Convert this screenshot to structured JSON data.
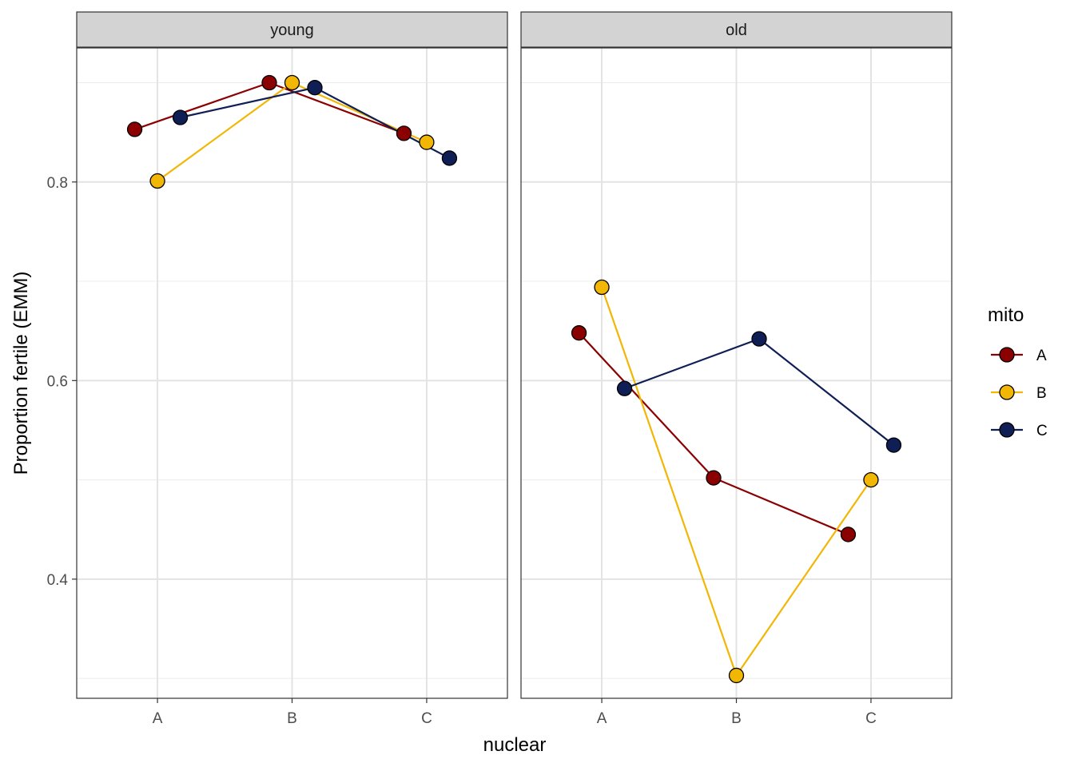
{
  "chart_data": {
    "type": "line",
    "xlabel": "nuclear",
    "ylabel": "Proportion fertile (EMM)",
    "categories": [
      "A",
      "B",
      "C"
    ],
    "yticks": [
      0.4,
      0.6,
      0.8
    ],
    "ylim": [
      0.28,
      0.935
    ],
    "grid": true,
    "legend": {
      "title": "mito",
      "position": "right"
    },
    "series_colors": {
      "A": "#8B0000",
      "B": "#F2B705",
      "C": "#0F1E55"
    },
    "panels": [
      {
        "label": "young",
        "series": [
          {
            "name": "A",
            "values": [
              0.853,
              0.9,
              0.849
            ]
          },
          {
            "name": "B",
            "values": [
              0.801,
              0.9,
              0.84
            ]
          },
          {
            "name": "C",
            "values": [
              0.865,
              0.895,
              0.824
            ]
          }
        ]
      },
      {
        "label": "old",
        "series": [
          {
            "name": "A",
            "values": [
              0.648,
              0.502,
              0.445
            ]
          },
          {
            "name": "B",
            "values": [
              0.694,
              0.303,
              0.5
            ]
          },
          {
            "name": "C",
            "values": [
              0.592,
              0.642,
              0.535
            ]
          }
        ]
      }
    ]
  }
}
